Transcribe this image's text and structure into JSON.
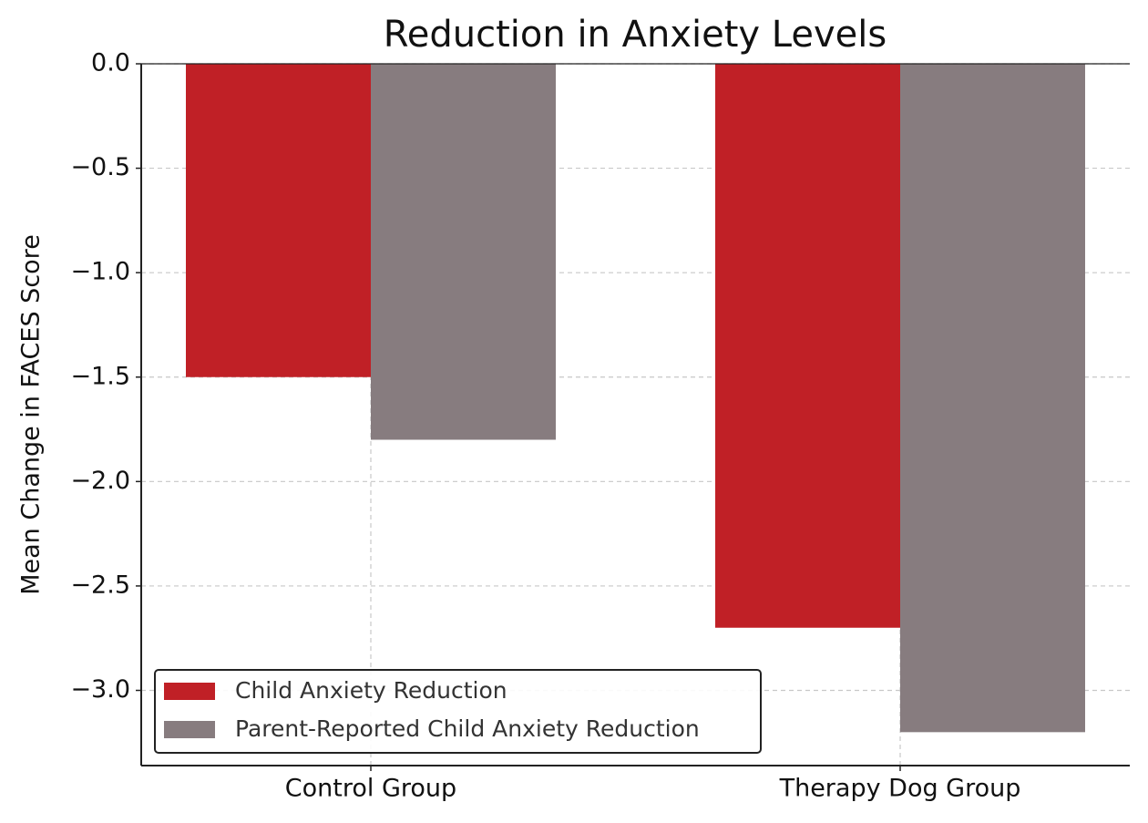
{
  "chart_data": {
    "type": "bar",
    "title": "Reduction in Anxiety Levels",
    "y_label": "Mean Change in FACES Score",
    "categories": [
      "Control Group",
      "Therapy Dog Group"
    ],
    "series": [
      {
        "name": "Child Anxiety Reduction",
        "color": "#c02026",
        "values": [
          -1.5,
          -2.7
        ]
      },
      {
        "name": "Parent-Reported Child Anxiety Reduction",
        "color": "#877c7f",
        "values": [
          -1.8,
          -3.2
        ]
      }
    ],
    "ylim": [
      -3.36,
      0
    ],
    "yticks": [
      {
        "value": 0,
        "label": "0.0"
      },
      {
        "value": -0.5,
        "label": "−0.5"
      },
      {
        "value": -1,
        "label": "−1.0"
      },
      {
        "value": -1.5,
        "label": "−1.5"
      },
      {
        "value": -2,
        "label": "−2.0"
      },
      {
        "value": -2.5,
        "label": "−2.5"
      },
      {
        "value": -3,
        "label": "−3.0"
      }
    ],
    "grid": true,
    "legend": "lower left"
  }
}
